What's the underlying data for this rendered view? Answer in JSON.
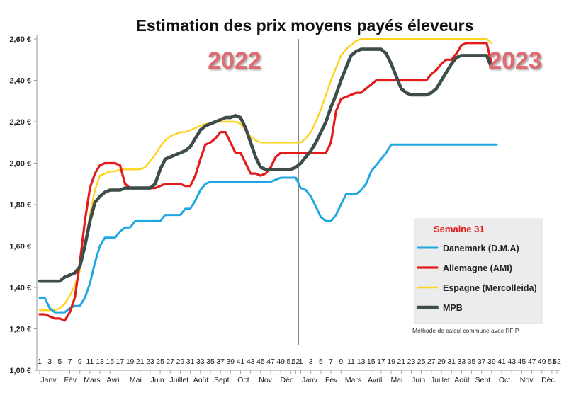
{
  "chart_data": {
    "type": "line",
    "title": "Estimation des prix moyens payés éleveurs",
    "xlabel": "",
    "ylabel": "",
    "ylim": [
      1.0,
      2.6
    ],
    "y_ticks": [
      "1,00 €",
      "1,20 €",
      "1,40 €",
      "1,60 €",
      "1,80 €",
      "2,00 €",
      "2,20 €",
      "2,40 €",
      "2,60 €"
    ],
    "y_tick_values": [
      1.0,
      1.2,
      1.4,
      1.6,
      1.8,
      2.0,
      2.2,
      2.4,
      2.6
    ],
    "x_range": [
      1,
      104
    ],
    "week_ticks_2022": [
      "1",
      "3",
      "5",
      "7",
      "9",
      "11",
      "13",
      "15",
      "17",
      "19",
      "21",
      "23",
      "25",
      "27",
      "29",
      "31",
      "33",
      "35",
      "37",
      "39",
      "41",
      "43",
      "45",
      "47",
      "49",
      "51",
      "52"
    ],
    "week_ticks_2023": [
      "1",
      "3",
      "5",
      "7",
      "9",
      "11",
      "13",
      "15",
      "17",
      "19",
      "21",
      "23",
      "25",
      "27",
      "29",
      "31",
      "33",
      "35",
      "37",
      "39",
      "41",
      "43",
      "45",
      "47",
      "49",
      "51",
      "52"
    ],
    "months": [
      "Janv",
      "Fév",
      "Mars",
      "Avril",
      "Mai",
      "Juin",
      "Juillet",
      "Août",
      "Sept.",
      "Oct.",
      "Nov.",
      "Déc."
    ],
    "months_2023": [
      "Janv",
      "Fév",
      "Mars",
      "Avril",
      "Mai",
      "Juin",
      "Juillet",
      "Août",
      "Sept.",
      "Oct.",
      "Nov.",
      "Déc."
    ],
    "year_labels": [
      "2022",
      "2023"
    ],
    "year_divider_x": 52.5,
    "legend": {
      "title": "Semaine 31",
      "note": "Méthode de calcul commune avec l'IFIP",
      "position": "bottom-right"
    },
    "series": [
      {
        "name": "Danemark (D.M.A)",
        "color": "#1ea7e1",
        "x": [
          1,
          2,
          3,
          4,
          5,
          6,
          7,
          8,
          9,
          10,
          11,
          12,
          13,
          14,
          15,
          16,
          17,
          18,
          19,
          20,
          22,
          24,
          25,
          26,
          27,
          28,
          29,
          30,
          31,
          32,
          33,
          34,
          35,
          36,
          37,
          38,
          40,
          42,
          44,
          46,
          47,
          48,
          49,
          50,
          51,
          52,
          53,
          54,
          55,
          56,
          57,
          58,
          59,
          60,
          61,
          62,
          63,
          64,
          65,
          66,
          67,
          68,
          69,
          70,
          71,
          72,
          73,
          74,
          75,
          76,
          78,
          80,
          82,
          84,
          86,
          88,
          90,
          92
        ],
        "values": [
          1.35,
          1.35,
          1.3,
          1.28,
          1.28,
          1.28,
          1.3,
          1.31,
          1.31,
          1.35,
          1.42,
          1.52,
          1.6,
          1.64,
          1.64,
          1.64,
          1.67,
          1.69,
          1.69,
          1.72,
          1.72,
          1.72,
          1.72,
          1.75,
          1.75,
          1.75,
          1.75,
          1.78,
          1.78,
          1.82,
          1.87,
          1.9,
          1.91,
          1.91,
          1.91,
          1.91,
          1.91,
          1.91,
          1.91,
          1.91,
          1.91,
          1.92,
          1.93,
          1.93,
          1.93,
          1.93,
          1.88,
          1.87,
          1.84,
          1.79,
          1.74,
          1.72,
          1.72,
          1.75,
          1.8,
          1.85,
          1.85,
          1.85,
          1.87,
          1.9,
          1.96,
          1.99,
          2.02,
          2.05,
          2.09,
          2.09,
          2.09,
          2.09,
          2.09,
          2.09,
          2.09,
          2.09,
          2.09,
          2.09,
          2.09,
          2.09,
          2.09,
          2.09
        ]
      },
      {
        "name": "Allemagne (AMI)",
        "color": "#e31b1b",
        "x": [
          1,
          2,
          3,
          4,
          5,
          6,
          7,
          8,
          9,
          10,
          11,
          12,
          13,
          14,
          15,
          16,
          17,
          18,
          19,
          20,
          21,
          22,
          23,
          24,
          25,
          26,
          27,
          28,
          29,
          30,
          31,
          32,
          33,
          34,
          35,
          36,
          37,
          38,
          39,
          40,
          41,
          42,
          43,
          44,
          45,
          46,
          47,
          48,
          49,
          50,
          51,
          52,
          53,
          54,
          55,
          56,
          57,
          58,
          59,
          60,
          61,
          62,
          63,
          64,
          65,
          66,
          67,
          68,
          69,
          70,
          71,
          72,
          73,
          74,
          75,
          76,
          77,
          78,
          79,
          80,
          81,
          82,
          83,
          84,
          85,
          86,
          87,
          88,
          89,
          90,
          91
        ],
        "values": [
          1.27,
          1.27,
          1.26,
          1.25,
          1.25,
          1.24,
          1.28,
          1.35,
          1.52,
          1.72,
          1.88,
          1.95,
          1.99,
          2.0,
          2.0,
          2.0,
          1.99,
          1.9,
          1.88,
          1.88,
          1.88,
          1.88,
          1.88,
          1.88,
          1.89,
          1.9,
          1.9,
          1.9,
          1.9,
          1.89,
          1.89,
          1.94,
          2.02,
          2.09,
          2.1,
          2.12,
          2.15,
          2.15,
          2.1,
          2.05,
          2.05,
          2.0,
          1.95,
          1.95,
          1.94,
          1.95,
          1.98,
          2.03,
          2.05,
          2.05,
          2.05,
          2.05,
          2.05,
          2.05,
          2.05,
          2.05,
          2.05,
          2.05,
          2.1,
          2.25,
          2.31,
          2.32,
          2.33,
          2.34,
          2.34,
          2.36,
          2.38,
          2.4,
          2.4,
          2.4,
          2.4,
          2.4,
          2.4,
          2.4,
          2.4,
          2.4,
          2.4,
          2.4,
          2.43,
          2.45,
          2.48,
          2.5,
          2.5,
          2.53,
          2.57,
          2.58,
          2.58,
          2.58,
          2.58,
          2.58,
          2.48
        ]
      },
      {
        "name": "Espagne (Mercolleida)",
        "color": "#ffd21f",
        "x": [
          1,
          2,
          3,
          4,
          5,
          6,
          7,
          8,
          9,
          10,
          11,
          12,
          13,
          14,
          15,
          16,
          17,
          18,
          19,
          20,
          21,
          22,
          23,
          24,
          25,
          26,
          27,
          28,
          29,
          30,
          31,
          32,
          33,
          34,
          35,
          36,
          37,
          38,
          39,
          40,
          41,
          42,
          43,
          44,
          45,
          46,
          47,
          48,
          49,
          50,
          51,
          52,
          53,
          54,
          55,
          56,
          57,
          58,
          59,
          60,
          61,
          62,
          63,
          64,
          65,
          66,
          67,
          68,
          69,
          70,
          72,
          74,
          76,
          78,
          80,
          82,
          84,
          86,
          88,
          90,
          91
        ],
        "values": [
          1.29,
          1.29,
          1.29,
          1.29,
          1.3,
          1.32,
          1.36,
          1.41,
          1.48,
          1.6,
          1.75,
          1.87,
          1.94,
          1.95,
          1.96,
          1.96,
          1.97,
          1.97,
          1.97,
          1.97,
          1.97,
          1.98,
          2.01,
          2.04,
          2.08,
          2.11,
          2.13,
          2.14,
          2.15,
          2.15,
          2.16,
          2.17,
          2.18,
          2.19,
          2.19,
          2.2,
          2.2,
          2.2,
          2.2,
          2.2,
          2.19,
          2.16,
          2.13,
          2.11,
          2.1,
          2.1,
          2.1,
          2.1,
          2.1,
          2.1,
          2.1,
          2.1,
          2.1,
          2.12,
          2.15,
          2.2,
          2.26,
          2.33,
          2.4,
          2.46,
          2.52,
          2.55,
          2.57,
          2.59,
          2.6,
          2.6,
          2.6,
          2.6,
          2.6,
          2.6,
          2.6,
          2.6,
          2.6,
          2.6,
          2.6,
          2.6,
          2.6,
          2.6,
          2.6,
          2.6,
          2.58
        ]
      },
      {
        "name": "MPB",
        "color": "#3e4d4a",
        "x": [
          1,
          2,
          3,
          4,
          5,
          6,
          7,
          8,
          9,
          10,
          11,
          12,
          13,
          14,
          15,
          16,
          17,
          18,
          19,
          20,
          21,
          22,
          23,
          24,
          25,
          26,
          27,
          28,
          29,
          30,
          31,
          32,
          33,
          34,
          35,
          36,
          37,
          38,
          39,
          40,
          41,
          42,
          43,
          44,
          45,
          46,
          47,
          48,
          49,
          50,
          51,
          52,
          53,
          54,
          55,
          56,
          57,
          58,
          59,
          60,
          61,
          62,
          63,
          64,
          65,
          66,
          67,
          68,
          69,
          70,
          71,
          72,
          73,
          74,
          75,
          76,
          77,
          78,
          79,
          80,
          81,
          82,
          83,
          84,
          85,
          86,
          87,
          88,
          89,
          90,
          91
        ],
        "values": [
          1.43,
          1.43,
          1.43,
          1.43,
          1.43,
          1.45,
          1.46,
          1.47,
          1.5,
          1.6,
          1.72,
          1.81,
          1.84,
          1.86,
          1.87,
          1.87,
          1.87,
          1.88,
          1.88,
          1.88,
          1.88,
          1.88,
          1.88,
          1.9,
          1.97,
          2.02,
          2.03,
          2.04,
          2.05,
          2.06,
          2.08,
          2.12,
          2.16,
          2.18,
          2.19,
          2.2,
          2.21,
          2.22,
          2.22,
          2.23,
          2.22,
          2.17,
          2.1,
          2.03,
          1.98,
          1.97,
          1.97,
          1.97,
          1.97,
          1.97,
          1.97,
          1.98,
          2.0,
          2.03,
          2.06,
          2.1,
          2.15,
          2.2,
          2.27,
          2.33,
          2.4,
          2.46,
          2.52,
          2.54,
          2.55,
          2.55,
          2.55,
          2.55,
          2.55,
          2.53,
          2.48,
          2.42,
          2.36,
          2.34,
          2.33,
          2.33,
          2.33,
          2.33,
          2.34,
          2.36,
          2.4,
          2.44,
          2.48,
          2.51,
          2.52,
          2.52,
          2.52,
          2.52,
          2.52,
          2.52,
          2.46
        ]
      }
    ]
  }
}
